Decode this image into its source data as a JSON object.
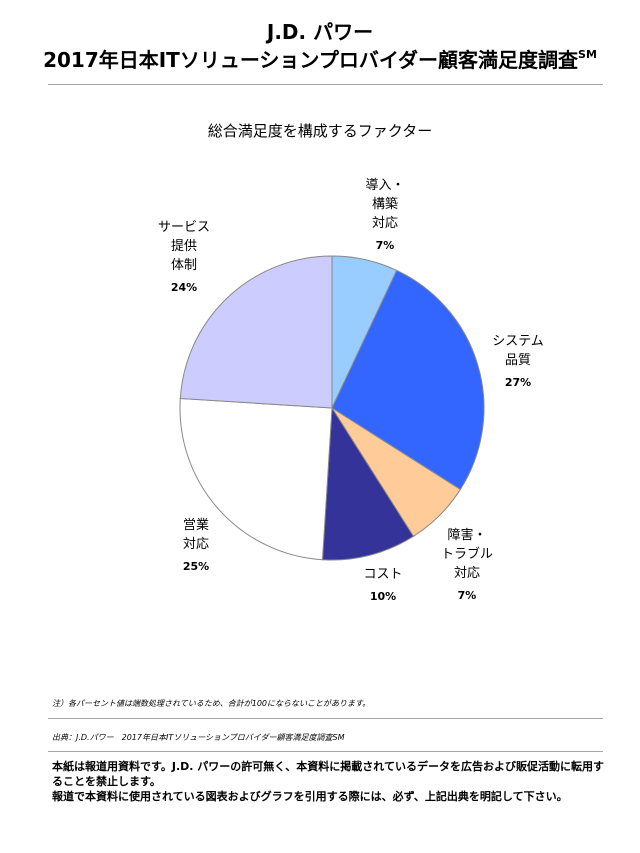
{
  "header": {
    "line1": "J.D. パワー",
    "line2": "2017年日本ITソリューションプロバイダー顧客満足度調査",
    "mark": "SM"
  },
  "chart_data": {
    "type": "pie",
    "title": "総合満足度を構成するファクター",
    "slices": [
      {
        "label": "導入・\n構築\n対応",
        "value": 7,
        "value_text": "7%",
        "color": "#99ccff"
      },
      {
        "label": "システム\n品質",
        "value": 27,
        "value_text": "27%",
        "color": "#3366ff"
      },
      {
        "label": "障害・\nトラブル\n対応",
        "value": 7,
        "value_text": "7%",
        "color": "#ffcc99"
      },
      {
        "label": "コスト",
        "value": 10,
        "value_text": "10%",
        "color": "#333399"
      },
      {
        "label": "営業\n対応",
        "value": 25,
        "value_text": "25%",
        "color": "#ffffff"
      },
      {
        "label": "サービス\n提供\n体制",
        "value": 24,
        "value_text": "24%",
        "color": "#ccccff"
      }
    ],
    "start_angle_deg": 0,
    "direction": "clockwise",
    "legend": "none"
  },
  "footer": {
    "note": "注）各パーセント値は端数処理されているため、合計が100にならないことがあります。",
    "source": "出典：J.D.パワー　2017年日本ITソリューションプロバイダー顧客満足度調査SM",
    "disclaimer_1": "本紙は報道用資料です。J.D. パワーの許可無く、本資料に掲載されているデータを広告および販促活動に転用することを禁止します。",
    "disclaimer_2": "報道で本資料に使用されている図表およびグラフを引用する際には、必ず、上記出典を明記して下さい。"
  }
}
